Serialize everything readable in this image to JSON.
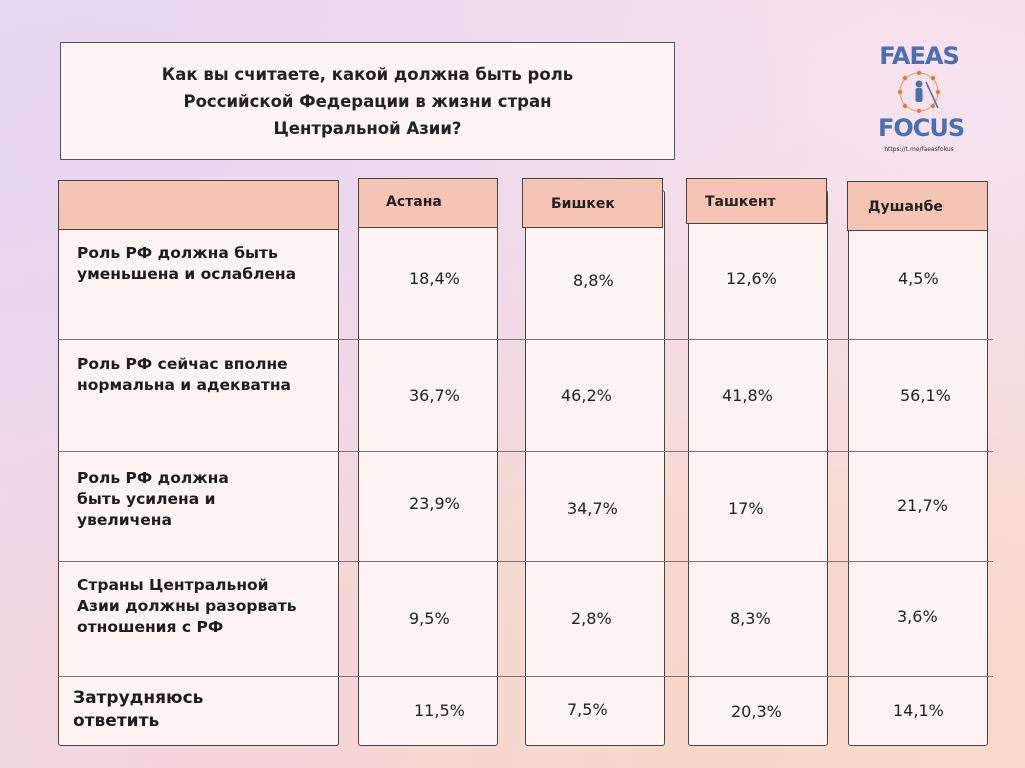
{
  "title": "Как вы считаете, какой должна быть роль Российской Федерации в жизни стран Центральной Азии?",
  "logo": {
    "top": "FAEAS",
    "bottom": "FOCUS",
    "url": "https://t.me/faeasfokus"
  },
  "chart_data": {
    "type": "table",
    "columns": [
      "Астана",
      "Бишкек",
      "Ташкент",
      "Душанбе"
    ],
    "rows": [
      {
        "label": "Роль РФ должна быть уменьшена и ослаблена",
        "values": [
          "18,4%",
          "8,8%",
          "12,6%",
          "4,5%"
        ]
      },
      {
        "label": "Роль РФ сейчас вполне нормальна и адекватна",
        "values": [
          "36,7%",
          "46,2%",
          "41,8%",
          "56,1%"
        ]
      },
      {
        "label": "Роль РФ должна быть усилена и увеличена",
        "values": [
          "23,9%",
          "34,7%",
          "17%",
          "21,7%"
        ]
      },
      {
        "label": "Страны Центральной Азии должны разорвать отношения с РФ",
        "values": [
          "9,5%",
          "2,8%",
          "8,3%",
          "3,6%"
        ]
      },
      {
        "label": "Затрудняюсь ответить",
        "values": [
          "11,5%",
          "7,5%",
          "20,3%",
          "14,1%"
        ]
      }
    ]
  }
}
